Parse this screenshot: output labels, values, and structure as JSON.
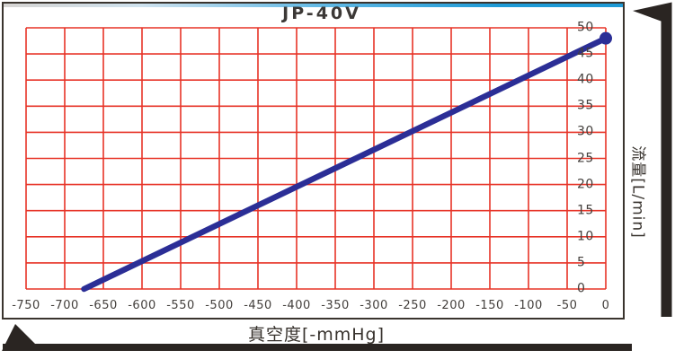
{
  "header": {
    "title": "JP-40V"
  },
  "chart_data": {
    "type": "line",
    "title": "JP-40V",
    "xlabel": "真空度[-mmHg]",
    "ylabel": "流量[L/min]",
    "xlim": [
      -750,
      0
    ],
    "ylim": [
      0,
      50
    ],
    "x_ticks": [
      -750,
      -700,
      -650,
      -600,
      -550,
      -500,
      -450,
      -400,
      -350,
      -300,
      -250,
      -200,
      -150,
      -100,
      -50,
      0
    ],
    "y_ticks": [
      0,
      5,
      10,
      15,
      20,
      25,
      30,
      35,
      40,
      45,
      50
    ],
    "grid": true,
    "legend_position": "none",
    "series": [
      {
        "name": "JP-40V",
        "points": [
          [
            -675,
            0
          ],
          [
            0,
            48
          ]
        ],
        "endpoint_marker": [
          0,
          48
        ]
      }
    ],
    "colors": {
      "grid": "#e73327",
      "line": "#2b2e96",
      "marker": "#2b2e96",
      "frame": "#3a342e",
      "arrows": "#2a2522",
      "text": "#433f3c",
      "accent_strip": "#1e9ad6"
    }
  }
}
